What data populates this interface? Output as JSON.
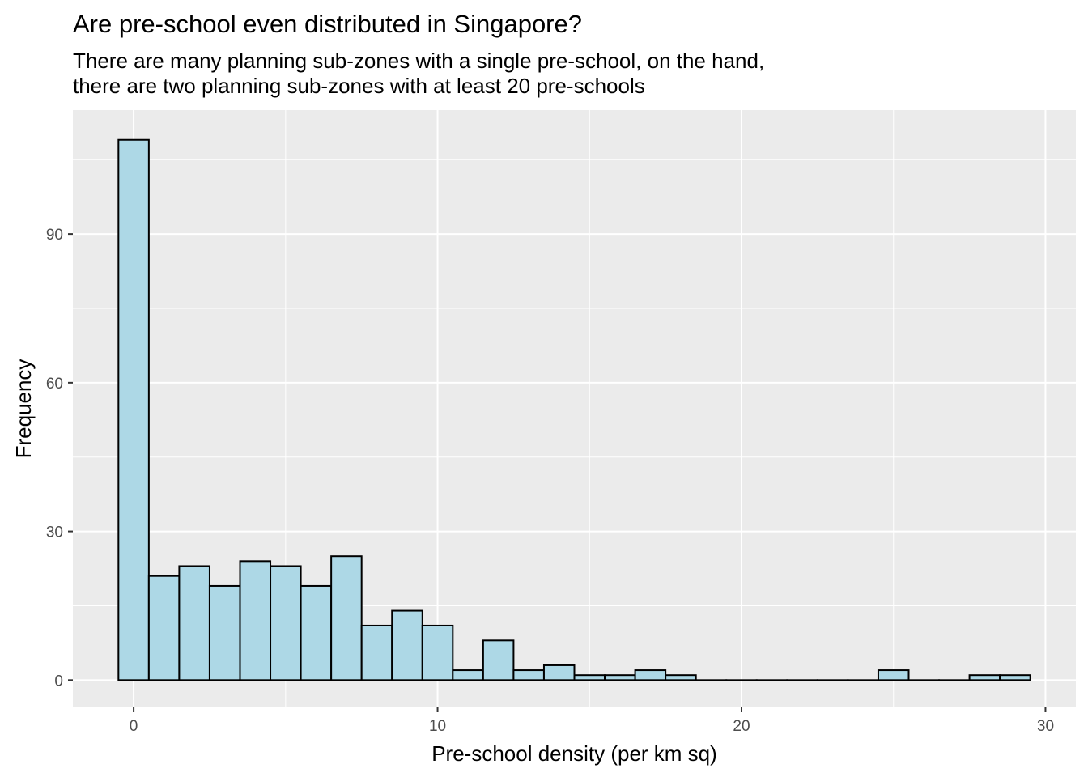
{
  "chart_data": {
    "type": "bar",
    "title": "Are pre-school even distributed in Singapore?",
    "subtitle_lines": [
      "There are many planning sub-zones with a single pre-school, on the hand,",
      "there are two planning sub-zones with at least 20 pre-schools"
    ],
    "xlabel": "Pre-school density (per km sq)",
    "ylabel": "Frequency",
    "xlim": [
      -2,
      31
    ],
    "ylim": [
      -5.5,
      115
    ],
    "x_ticks": [
      0,
      10,
      20,
      30
    ],
    "y_ticks": [
      0,
      30,
      60,
      90
    ],
    "x_tick_labels": [
      "0",
      "10",
      "20",
      "30"
    ],
    "y_tick_labels": [
      "0",
      "30",
      "60",
      "90"
    ],
    "grid": true,
    "panel_background": "#ebebeb",
    "grid_color": "#ffffff",
    "bar_fill": "#add8e6",
    "bar_stroke": "#000000",
    "bin_width": 1,
    "bins": [
      {
        "x": 0,
        "count": 109
      },
      {
        "x": 1,
        "count": 21
      },
      {
        "x": 2,
        "count": 23
      },
      {
        "x": 3,
        "count": 19
      },
      {
        "x": 4,
        "count": 24
      },
      {
        "x": 5,
        "count": 23
      },
      {
        "x": 6,
        "count": 19
      },
      {
        "x": 7,
        "count": 25
      },
      {
        "x": 8,
        "count": 11
      },
      {
        "x": 9,
        "count": 14
      },
      {
        "x": 10,
        "count": 11
      },
      {
        "x": 11,
        "count": 2
      },
      {
        "x": 12,
        "count": 8
      },
      {
        "x": 13,
        "count": 2
      },
      {
        "x": 14,
        "count": 3
      },
      {
        "x": 15,
        "count": 1
      },
      {
        "x": 16,
        "count": 1
      },
      {
        "x": 17,
        "count": 2
      },
      {
        "x": 18,
        "count": 1
      },
      {
        "x": 19,
        "count": 0
      },
      {
        "x": 20,
        "count": 0
      },
      {
        "x": 21,
        "count": 0
      },
      {
        "x": 22,
        "count": 0
      },
      {
        "x": 23,
        "count": 0
      },
      {
        "x": 24,
        "count": 0
      },
      {
        "x": 25,
        "count": 2
      },
      {
        "x": 26,
        "count": 0
      },
      {
        "x": 27,
        "count": 0
      },
      {
        "x": 28,
        "count": 1
      },
      {
        "x": 29,
        "count": 1
      }
    ]
  }
}
